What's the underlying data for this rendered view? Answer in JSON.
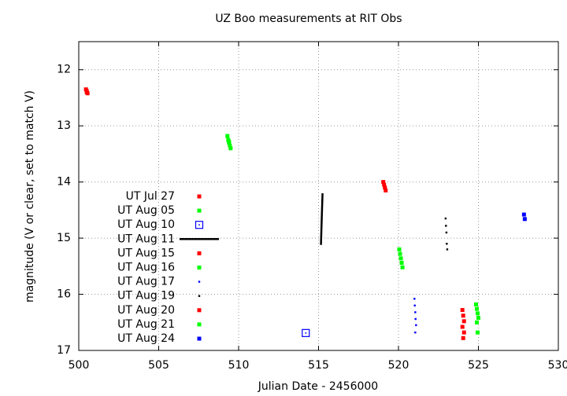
{
  "chart_data": {
    "type": "scatter",
    "title": "UZ Boo measurements at RIT Obs",
    "x_label": "Julian Date - 2456000",
    "y_label": "magnitude (V or clear, set to match V)",
    "xlim": [
      500,
      530
    ],
    "xticks": [
      500,
      505,
      510,
      515,
      520,
      525,
      530
    ],
    "ylim": [
      17,
      11.5
    ],
    "yticks": [
      12,
      13,
      14,
      15,
      16,
      17
    ],
    "grid": true,
    "legend": "left",
    "series": [
      {
        "name": "UT Jul 27",
        "color": "#ff0000",
        "marker": "square",
        "x": [
          500.45,
          500.5,
          500.5,
          500.55
        ],
        "values": [
          12.35,
          12.38,
          12.4,
          12.42
        ]
      },
      {
        "name": "UT Aug 05",
        "color": "#00ff00",
        "marker": "square",
        "x": [
          509.3,
          509.35,
          509.4,
          509.45,
          509.5,
          509.4
        ],
        "values": [
          13.18,
          13.25,
          13.3,
          13.35,
          13.4,
          13.28
        ]
      },
      {
        "name": "UT Aug 10",
        "color": "#0000ff",
        "marker": "open-square",
        "x": [
          514.2
        ],
        "values": [
          16.69
        ]
      },
      {
        "name": "UT Aug 11",
        "color": "#000000",
        "marker": "line",
        "x": [
          515.15,
          515.2,
          515.25
        ],
        "values": [
          15.12,
          14.65,
          14.2
        ]
      },
      {
        "name": "UT Aug 15",
        "color": "#ff0000",
        "marker": "square",
        "x": [
          519.05,
          519.1,
          519.15,
          519.2
        ],
        "values": [
          14.0,
          14.05,
          14.1,
          14.15
        ]
      },
      {
        "name": "UT Aug 16",
        "color": "#00ff00",
        "marker": "square",
        "x": [
          520.05,
          520.1,
          520.15,
          520.2,
          520.25
        ],
        "values": [
          15.2,
          15.28,
          15.36,
          15.44,
          15.52
        ]
      },
      {
        "name": "UT Aug 17",
        "color": "#0000ff",
        "marker": "dot",
        "x": [
          521.0,
          521.02,
          521.05,
          521.07,
          521.1,
          521.05
        ],
        "values": [
          16.08,
          16.2,
          16.32,
          16.44,
          16.55,
          16.68
        ]
      },
      {
        "name": "UT Aug 19",
        "color": "#000000",
        "marker": "dot",
        "x": [
          522.95,
          522.97,
          523.0,
          523.02,
          523.05
        ],
        "values": [
          14.65,
          14.78,
          14.9,
          15.1,
          15.2
        ]
      },
      {
        "name": "UT Aug 20",
        "color": "#ff0000",
        "marker": "square",
        "x": [
          524.0,
          524.05,
          524.1,
          524.0,
          524.1,
          524.05
        ],
        "values": [
          16.28,
          16.38,
          16.48,
          16.58,
          16.68,
          16.78
        ]
      },
      {
        "name": "UT Aug 21",
        "color": "#00ff00",
        "marker": "square",
        "x": [
          524.85,
          524.9,
          524.95,
          525.0,
          524.9,
          524.95
        ],
        "values": [
          16.18,
          16.26,
          16.34,
          16.42,
          16.5,
          16.68
        ]
      },
      {
        "name": "UT Aug 24",
        "color": "#0000ff",
        "marker": "square",
        "x": [
          527.85,
          527.9
        ],
        "values": [
          14.58,
          14.66
        ]
      }
    ]
  }
}
